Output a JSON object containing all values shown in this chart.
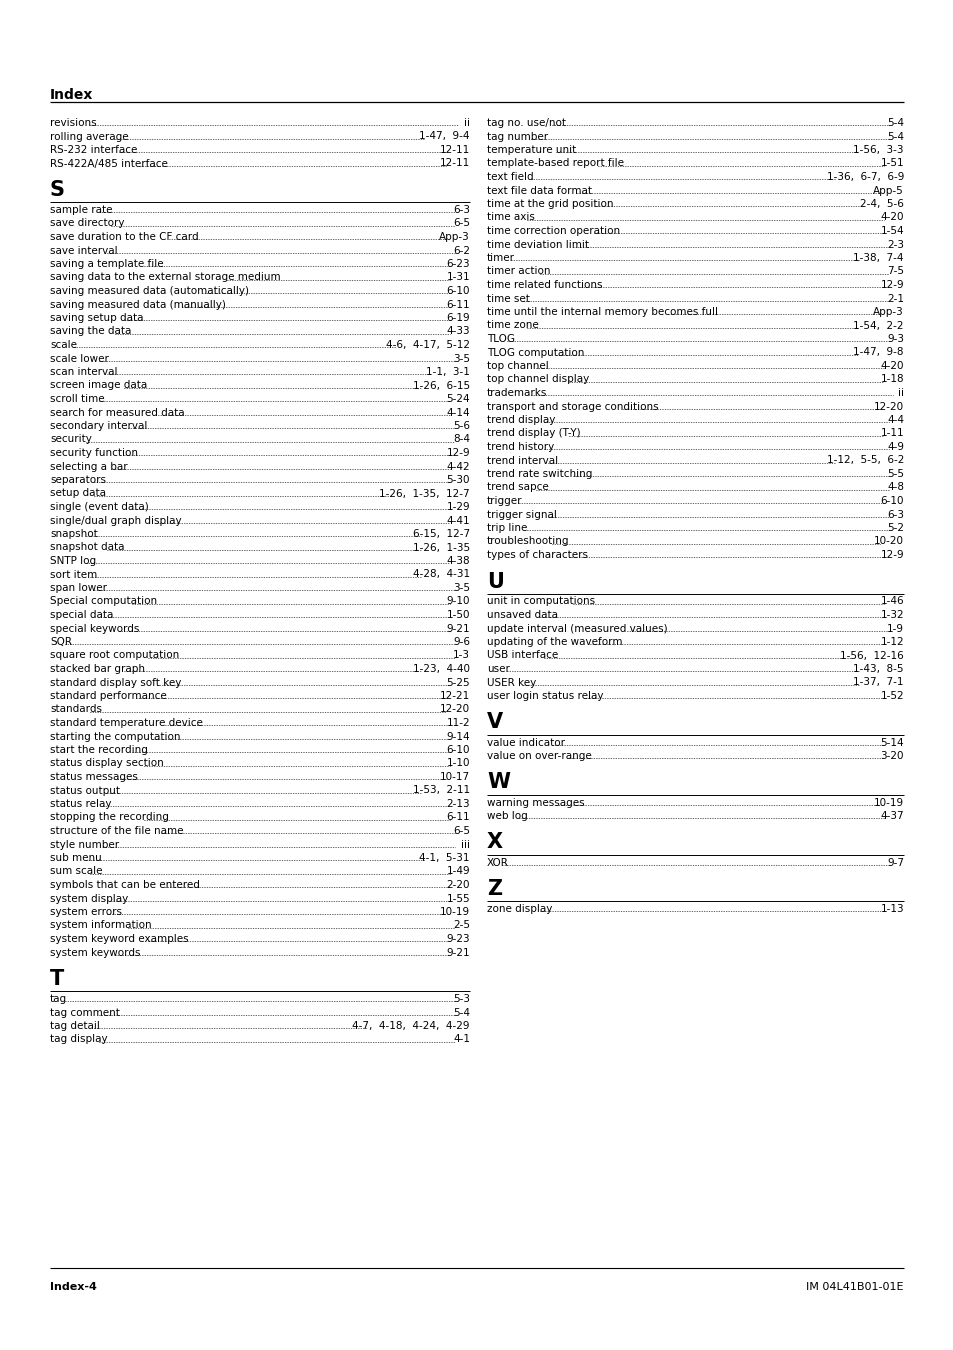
{
  "title": "Index",
  "footer_left": "Index-4",
  "footer_right": "IM 04L41B01-01E",
  "left_entries": [
    [
      "revisions",
      "ii"
    ],
    [
      "rolling average",
      "1-47,  9-4"
    ],
    [
      "RS-232 interface",
      "12-11"
    ],
    [
      "RS-422A/485 interface",
      "12-11"
    ],
    [
      "__SECTION__",
      "S"
    ],
    [
      "sample rate",
      "6-3"
    ],
    [
      "save directory",
      "6-5"
    ],
    [
      "save duration to the CF card",
      "App-3"
    ],
    [
      "save interval",
      "6-2"
    ],
    [
      "saving a template file",
      "6-23"
    ],
    [
      "saving data to the external storage medium",
      "1-31"
    ],
    [
      "saving measured data (automatically)",
      "6-10"
    ],
    [
      "saving measured data (manually)",
      "6-11"
    ],
    [
      "saving setup data",
      "6-19"
    ],
    [
      "saving the data",
      "4-33"
    ],
    [
      "scale",
      "4-6,  4-17,  5-12"
    ],
    [
      "scale lower",
      "3-5"
    ],
    [
      "scan interval",
      "1-1,  3-1"
    ],
    [
      "screen image data",
      "1-26,  6-15"
    ],
    [
      "scroll time",
      "5-24"
    ],
    [
      "search for measured data",
      "4-14"
    ],
    [
      "secondary interval",
      "5-6"
    ],
    [
      "security",
      "8-4"
    ],
    [
      "security function",
      "12-9"
    ],
    [
      "selecting a bar",
      "4-42"
    ],
    [
      "separators",
      "5-30"
    ],
    [
      "setup data",
      "1-26,  1-35,  12-7"
    ],
    [
      "single (event data)",
      "1-29"
    ],
    [
      "single/dual graph display",
      "4-41"
    ],
    [
      "snapshot",
      "6-15,  12-7"
    ],
    [
      "snapshot data",
      "1-26,  1-35"
    ],
    [
      "SNTP log",
      "4-38"
    ],
    [
      "sort item",
      "4-28,  4-31"
    ],
    [
      "span lower",
      "3-5"
    ],
    [
      "Special computation",
      "9-10"
    ],
    [
      "special data",
      "1-50"
    ],
    [
      "special keywords",
      "9-21"
    ],
    [
      "SQR",
      "9-6"
    ],
    [
      "square root computation",
      "1-3"
    ],
    [
      "stacked bar graph",
      "1-23,  4-40"
    ],
    [
      "standard display soft key",
      "5-25"
    ],
    [
      "standard performance",
      "12-21"
    ],
    [
      "standards",
      "12-20"
    ],
    [
      "standard temperature device",
      "11-2"
    ],
    [
      "starting the computation",
      "9-14"
    ],
    [
      "start the recording",
      "6-10"
    ],
    [
      "status display section",
      "1-10"
    ],
    [
      "status messages",
      "10-17"
    ],
    [
      "status output",
      "1-53,  2-11"
    ],
    [
      "status relay",
      "2-13"
    ],
    [
      "stopping the recording",
      "6-11"
    ],
    [
      "structure of the file name",
      "6-5"
    ],
    [
      "style number",
      "iii"
    ],
    [
      "sub menu",
      "4-1,  5-31"
    ],
    [
      "sum scale",
      "1-49"
    ],
    [
      "symbols that can be entered",
      "2-20"
    ],
    [
      "system display",
      "1-55"
    ],
    [
      "system errors",
      "10-19"
    ],
    [
      "system information",
      "2-5"
    ],
    [
      "system keyword examples",
      "9-23"
    ],
    [
      "system keywords",
      "9-21"
    ],
    [
      "__SECTION__",
      "T"
    ],
    [
      "tag",
      "5-3"
    ],
    [
      "tag comment",
      "5-4"
    ],
    [
      "tag detail",
      "4-7,  4-18,  4-24,  4-29"
    ],
    [
      "tag display",
      "4-1"
    ]
  ],
  "right_entries": [
    [
      "tag no. use/not",
      "5-4"
    ],
    [
      "tag number",
      "5-4"
    ],
    [
      "temperature unit",
      "1-56,  3-3"
    ],
    [
      "template-based report file",
      "1-51"
    ],
    [
      "text field",
      "1-36,  6-7,  6-9"
    ],
    [
      "text file data format",
      "App-5"
    ],
    [
      "time at the grid position",
      "2-4,  5-6"
    ],
    [
      "time axis",
      "4-20"
    ],
    [
      "time correction operation",
      "1-54"
    ],
    [
      "time deviation limit",
      "2-3"
    ],
    [
      "timer",
      "1-38,  7-4"
    ],
    [
      "timer action",
      "7-5"
    ],
    [
      "time related functions",
      "12-9"
    ],
    [
      "time set",
      "2-1"
    ],
    [
      "time until the internal memory becomes full",
      "App-3"
    ],
    [
      "time zone",
      "1-54,  2-2"
    ],
    [
      "TLOG",
      "9-3"
    ],
    [
      "TLOG computation",
      "1-47,  9-8"
    ],
    [
      "top channel",
      "4-20"
    ],
    [
      "top channel display",
      "1-18"
    ],
    [
      "trademarks",
      "ii"
    ],
    [
      "transport and storage conditions",
      "12-20"
    ],
    [
      "trend display",
      "4-4"
    ],
    [
      "trend display (T-Y)",
      "1-11"
    ],
    [
      "trend history",
      "4-9"
    ],
    [
      "trend interval",
      "1-12,  5-5,  6-2"
    ],
    [
      "trend rate switching",
      "5-5"
    ],
    [
      "trend sapce",
      "4-8"
    ],
    [
      "trigger",
      "6-10"
    ],
    [
      "trigger signal",
      "6-3"
    ],
    [
      "trip line",
      "5-2"
    ],
    [
      "troubleshooting",
      "10-20"
    ],
    [
      "types of characters",
      "12-9"
    ],
    [
      "__SECTION__",
      "U"
    ],
    [
      "unit in computations",
      "1-46"
    ],
    [
      "unsaved data",
      "1-32"
    ],
    [
      "update interval (measured values)",
      "1-9"
    ],
    [
      "updating of the waveform",
      "1-12"
    ],
    [
      "USB interface",
      "1-56,  12-16"
    ],
    [
      "user",
      "1-43,  8-5"
    ],
    [
      "USER key",
      "1-37,  7-1"
    ],
    [
      "user login status relay",
      "1-52"
    ],
    [
      "__SECTION__",
      "V"
    ],
    [
      "value indicator",
      "5-14"
    ],
    [
      "value on over-range",
      "3-20"
    ],
    [
      "__SECTION__",
      "W"
    ],
    [
      "warning messages",
      "10-19"
    ],
    [
      "web log",
      "4-37"
    ],
    [
      "__SECTION__",
      "X"
    ],
    [
      "XOR",
      "9-7"
    ],
    [
      "__SECTION__",
      "Z"
    ],
    [
      "zone display",
      "1-13"
    ]
  ]
}
